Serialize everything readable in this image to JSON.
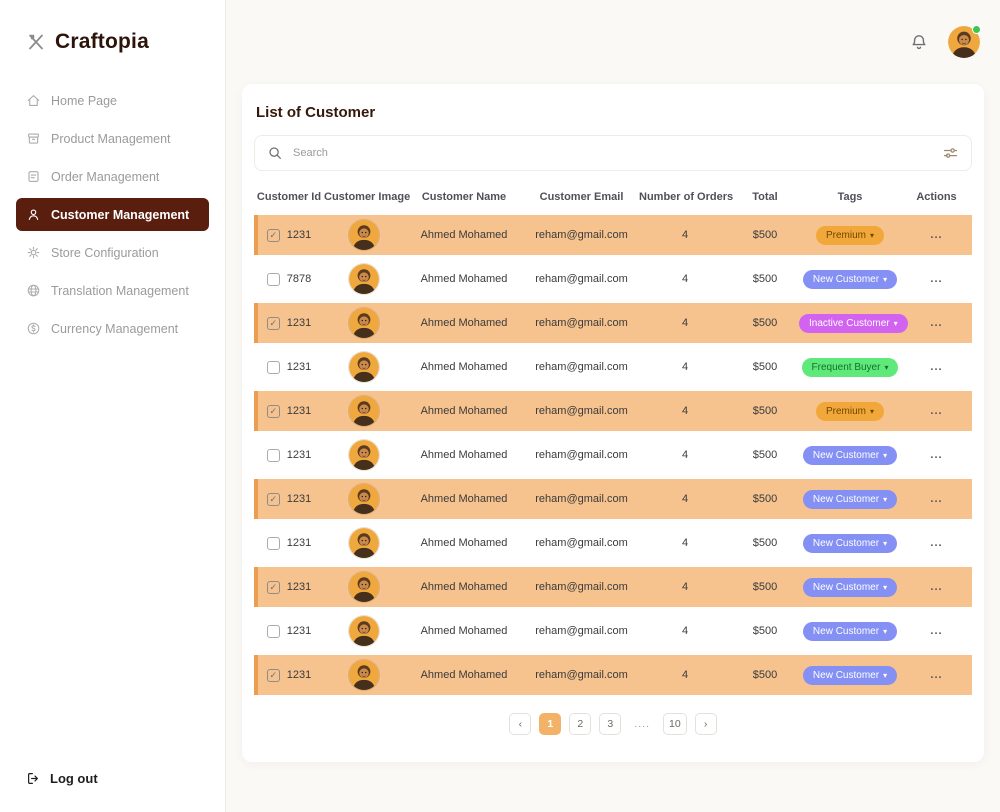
{
  "brand": {
    "name": "Craftopia",
    "logo_icon": "crossed-utensils-icon"
  },
  "sidebar": {
    "items": [
      {
        "label": "Home Page",
        "icon": "home-icon",
        "active": false
      },
      {
        "label": "Product Management",
        "icon": "product-box-icon",
        "active": false
      },
      {
        "label": "Order Management",
        "icon": "order-note-icon",
        "active": false
      },
      {
        "label": "Customer Management",
        "icon": "customer-person-icon",
        "active": true
      },
      {
        "label": "Store Configuration",
        "icon": "gear-icon",
        "active": false
      },
      {
        "label": "Translation Management",
        "icon": "globe-icon",
        "active": false
      },
      {
        "label": "Currency Management",
        "icon": "currency-dollar-icon",
        "active": false
      }
    ],
    "logout": {
      "label": "Log out",
      "icon": "logout-icon"
    }
  },
  "topbar": {
    "bell_icon": "bell-icon",
    "avatar": "user-avatar",
    "status": "online"
  },
  "main": {
    "title": "List of Customer",
    "search": {
      "placeholder": "Search",
      "left_icon": "search-icon",
      "right_icon": "filter-sliders-icon"
    }
  },
  "table": {
    "headers": [
      "Customer Id",
      "Customer Image",
      "Customer Name",
      "Customer Email",
      "Number of Orders",
      "Total",
      "Tags",
      "Actions"
    ],
    "actions_label": "...",
    "tag_caret": "▾",
    "rows": [
      {
        "checked": true,
        "highlighted": true,
        "id": "1231",
        "name": "Ahmed Mohamed",
        "email": "reham@gmail.com",
        "orders": "4",
        "total": "$500",
        "tag": {
          "label": "Premium",
          "type": "premium"
        }
      },
      {
        "checked": false,
        "highlighted": false,
        "id": "7878",
        "name": "Ahmed Mohamed",
        "email": "reham@gmail.com",
        "orders": "4",
        "total": "$500",
        "tag": {
          "label": "New Customer",
          "type": "new_customer"
        }
      },
      {
        "checked": true,
        "highlighted": true,
        "id": "1231",
        "name": "Ahmed Mohamed",
        "email": "reham@gmail.com",
        "orders": "4",
        "total": "$500",
        "tag": {
          "label": "Inactive Customer",
          "type": "inactive_customer"
        }
      },
      {
        "checked": false,
        "highlighted": false,
        "id": "1231",
        "name": "Ahmed Mohamed",
        "email": "reham@gmail.com",
        "orders": "4",
        "total": "$500",
        "tag": {
          "label": "Frequent Buyer",
          "type": "frequent_buyer"
        }
      },
      {
        "checked": true,
        "highlighted": true,
        "id": "1231",
        "name": "Ahmed Mohamed",
        "email": "reham@gmail.com",
        "orders": "4",
        "total": "$500",
        "tag": {
          "label": "Premium",
          "type": "premium"
        }
      },
      {
        "checked": false,
        "highlighted": false,
        "id": "1231",
        "name": "Ahmed Mohamed",
        "email": "reham@gmail.com",
        "orders": "4",
        "total": "$500",
        "tag": {
          "label": "New Customer",
          "type": "new_customer"
        }
      },
      {
        "checked": true,
        "highlighted": true,
        "id": "1231",
        "name": "Ahmed Mohamed",
        "email": "reham@gmail.com",
        "orders": "4",
        "total": "$500",
        "tag": {
          "label": "New Customer",
          "type": "new_customer"
        }
      },
      {
        "checked": false,
        "highlighted": false,
        "id": "1231",
        "name": "Ahmed Mohamed",
        "email": "reham@gmail.com",
        "orders": "4",
        "total": "$500",
        "tag": {
          "label": "New Customer",
          "type": "new_customer"
        }
      },
      {
        "checked": true,
        "highlighted": true,
        "id": "1231",
        "name": "Ahmed Mohamed",
        "email": "reham@gmail.com",
        "orders": "4",
        "total": "$500",
        "tag": {
          "label": "New Customer",
          "type": "new_customer"
        }
      },
      {
        "checked": false,
        "highlighted": false,
        "id": "1231",
        "name": "Ahmed Mohamed",
        "email": "reham@gmail.com",
        "orders": "4",
        "total": "$500",
        "tag": {
          "label": "New Customer",
          "type": "new_customer"
        }
      },
      {
        "checked": true,
        "highlighted": true,
        "id": "1231",
        "name": "Ahmed Mohamed",
        "email": "reham@gmail.com",
        "orders": "4",
        "total": "$500",
        "tag": {
          "label": "New Customer",
          "type": "new_customer"
        }
      }
    ]
  },
  "tag_styles": {
    "premium": {
      "bg": "#F2A73B",
      "text": "#6E4700"
    },
    "new_customer": {
      "bg": "#8490F3",
      "text": "#FFFFFF"
    },
    "inactive_customer": {
      "bg": "#D163F0",
      "text": "#FFFFFF"
    },
    "frequent_buyer": {
      "bg": "#5FE97A",
      "text": "#15702B"
    }
  },
  "colors": {
    "active_nav_bg": "#5A1E0F",
    "row_highlight_bg": "#F6C28E",
    "row_highlight_accent": "#ED9D4F",
    "pagination_active_bg": "#F2B369",
    "online_dot": "#3BC552"
  },
  "pagination": {
    "prev": "‹",
    "next": "›",
    "pages": [
      {
        "label": "1",
        "active": true
      },
      {
        "label": "2"
      },
      {
        "label": "3"
      },
      {
        "label": "....",
        "dots": true
      },
      {
        "label": "10"
      }
    ]
  }
}
